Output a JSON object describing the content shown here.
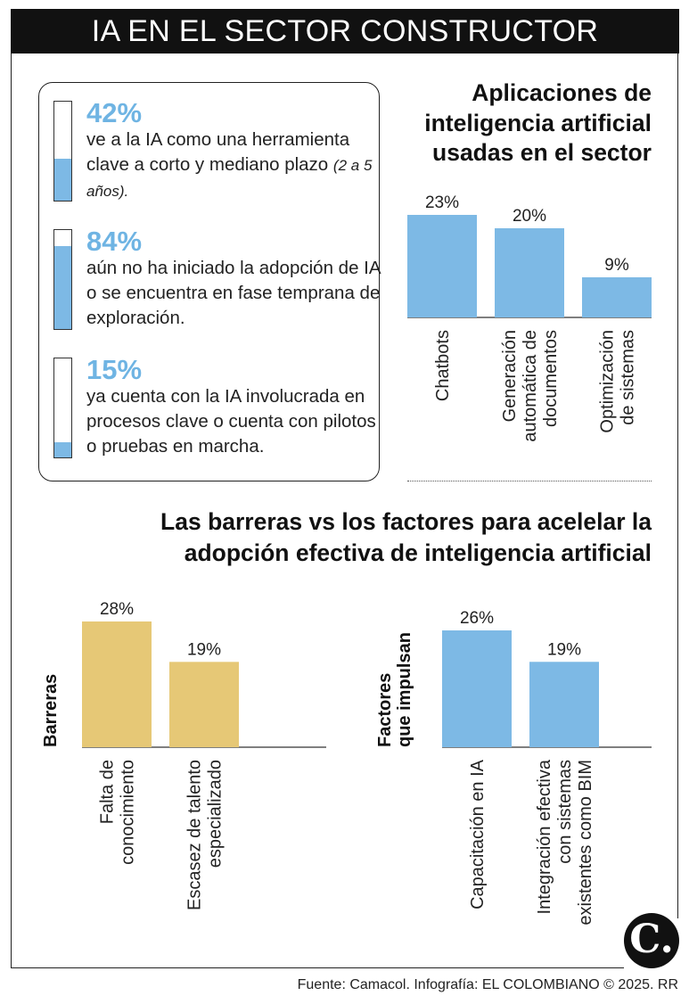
{
  "header": {
    "title": "IA EN EL SECTOR CONSTRUCTOR"
  },
  "stats": [
    {
      "pct": "42%",
      "value": 42,
      "text": "ve a la IA como una herramienta clave a corto y mediano plazo",
      "note": "(2 a 5 años)."
    },
    {
      "pct": "84%",
      "value": 84,
      "text": "aún no ha iniciado la adopción de IA o se encuentra en fase temprana de exploración.",
      "note": ""
    },
    {
      "pct": "15%",
      "value": 15,
      "text": "ya cuenta con la IA involucrada en procesos clave o cuenta con pilotos o pruebas en marcha.",
      "note": ""
    }
  ],
  "colors": {
    "blue": "#7db9e5",
    "gold": "#e6c876",
    "pct_text": "#6fb4e3"
  },
  "chart_data": [
    {
      "type": "bar",
      "title": "Aplicaciones de inteligencia artificial usadas en el sector",
      "categories": [
        "Chatbots",
        "Generación automática de documentos",
        "Optimización de sistemas"
      ],
      "values": [
        23,
        20,
        9
      ],
      "value_labels": [
        "23%",
        "20%",
        "9%"
      ],
      "ylabel": "",
      "ylim": [
        0,
        25
      ]
    },
    {
      "type": "bar",
      "title": "Las barreras vs los factores para acelelar la adopción efectiva de inteligencia artificial",
      "side_label": "Barreras",
      "categories": [
        "Falta de conocimiento",
        "Escasez de talento especializado"
      ],
      "values": [
        28,
        19
      ],
      "value_labels": [
        "28%",
        "19%"
      ],
      "ylim": [
        0,
        30
      ]
    },
    {
      "type": "bar",
      "side_label": "Factores que impulsan",
      "categories": [
        "Capacitación en IA",
        "Integración efectiva con sistemas existentes como BIM"
      ],
      "values": [
        26,
        19
      ],
      "value_labels": [
        "26%",
        "19%"
      ],
      "ylim": [
        0,
        30
      ]
    }
  ],
  "titles": {
    "apps": "Aplicaciones de inteligencia artificial usadas en el sector",
    "barriers": "Las barreras vs los factores para acelelar la adopción efectiva de inteligencia artificial"
  },
  "side_labels": {
    "barreras": "Barreras",
    "factores_1": "Factores",
    "factores_2": "que impulsan"
  },
  "footer": {
    "source": "Fuente: Camacol. Infografía: EL COLOMBIANO © 2025. RR",
    "logo": "C."
  }
}
